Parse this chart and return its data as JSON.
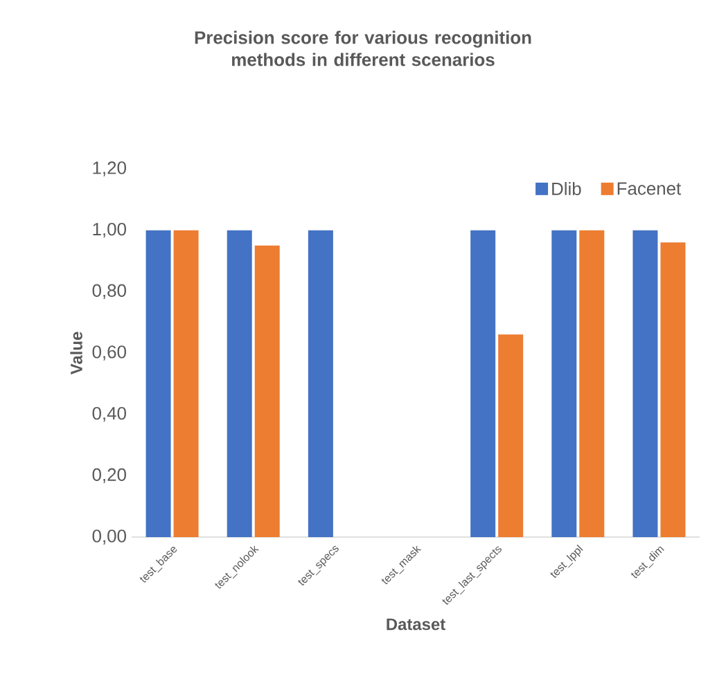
{
  "chart_data": {
    "type": "bar",
    "title": "Precision score for various recognition methods in different scenarios",
    "xlabel": "Dataset",
    "ylabel": "Value",
    "categories": [
      "test_base",
      "test_nolook",
      "test_specs",
      "test_mask",
      "test_last_spects",
      "test_lppl",
      "test_dim"
    ],
    "series": [
      {
        "name": "Dlib",
        "color": "#4472c4",
        "values": [
          1.0,
          1.0,
          1.0,
          null,
          1.0,
          1.0,
          1.0
        ]
      },
      {
        "name": "Facenet",
        "color": "#ed7d31",
        "values": [
          1.0,
          0.95,
          null,
          null,
          0.66,
          1.0,
          0.96
        ]
      }
    ],
    "ylim": [
      0,
      1.2
    ],
    "yticks": [
      {
        "value": 0,
        "label": "0,00"
      },
      {
        "value": 0.2,
        "label": "0,20"
      },
      {
        "value": 0.4,
        "label": "0,40"
      },
      {
        "value": 0.6,
        "label": "0,60"
      },
      {
        "value": 0.8,
        "label": "0,80"
      },
      {
        "value": 1.0,
        "label": "1,00"
      },
      {
        "value": 1.2,
        "label": "1,20"
      }
    ],
    "legend": "top right"
  }
}
